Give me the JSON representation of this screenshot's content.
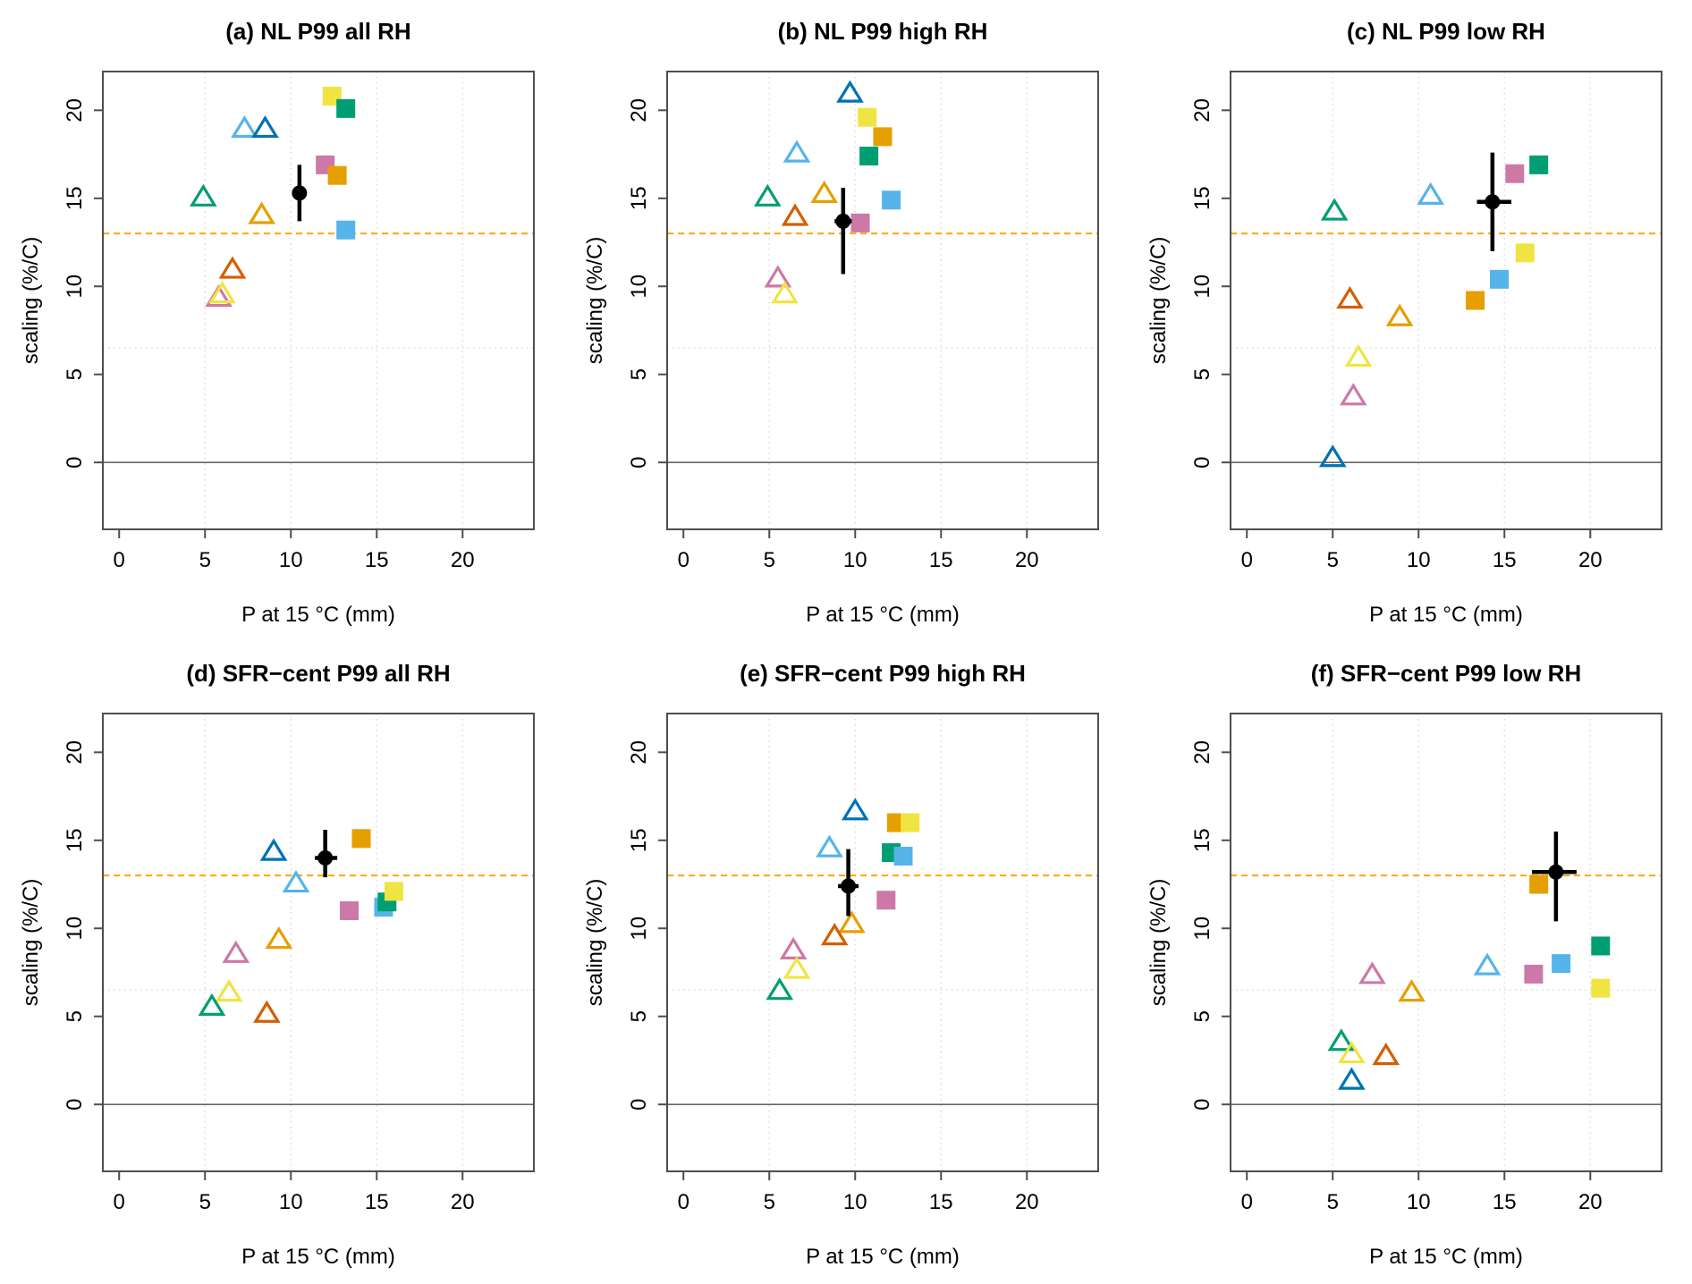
{
  "figure": {
    "xlabel": "P at 15 °C (mm)",
    "ylabel": "scaling (%/C)",
    "x_ticks": [
      0,
      5,
      10,
      15,
      20
    ],
    "y_ticks": [
      0,
      5,
      10,
      15,
      20
    ],
    "xlim": [
      -0.95,
      24.15
    ],
    "ylim": [
      -3.8,
      22.2
    ],
    "grid": "dotted gray vertical at x ticks 5-20, dotted gray horizontal at y 6.5 and 13",
    "grid_x": [
      5,
      10,
      15,
      20
    ],
    "ref_lines": {
      "gray_dotted_y": [
        6.5,
        13
      ],
      "orange_dashed_y": 13,
      "solid_zero_y": 0
    },
    "colors": {
      "orange": "#E69F00",
      "skyblue": "#56B4E9",
      "green": "#009E73",
      "yellow": "#F0E442",
      "darkblue": "#0072B2",
      "vermillion": "#D55E00",
      "pink": "#CC79A7",
      "black": "#000000",
      "orange_line": "#FFA500",
      "gray_grid": "#DCDCDC",
      "axis": "#4d4d4d"
    }
  },
  "chart_data": [
    {
      "panel": "a",
      "title": "(a) NL P99 all RH",
      "type": "scatter",
      "triangles": [
        {
          "color": "green",
          "x": 4.9,
          "y": 15.1
        },
        {
          "color": "skyblue",
          "x": 7.3,
          "y": 19.0
        },
        {
          "color": "darkblue",
          "x": 8.5,
          "y": 19.0
        },
        {
          "color": "orange",
          "x": 8.3,
          "y": 14.1
        },
        {
          "color": "vermillion",
          "x": 6.6,
          "y": 11.0
        },
        {
          "color": "pink",
          "x": 5.8,
          "y": 9.4
        },
        {
          "color": "yellow",
          "x": 6.0,
          "y": 9.6
        }
      ],
      "squares": [
        {
          "color": "skyblue",
          "x": 13.2,
          "y": 13.2
        },
        {
          "color": "pink",
          "x": 12.0,
          "y": 16.9
        },
        {
          "color": "orange",
          "x": 12.7,
          "y": 16.3
        },
        {
          "color": "yellow",
          "x": 12.4,
          "y": 20.8
        },
        {
          "color": "green",
          "x": 13.2,
          "y": 20.1
        }
      ],
      "ensemble_mean": {
        "x": 10.5,
        "y": 15.3,
        "yerr": [
          13.7,
          16.9
        ],
        "xerr": null
      }
    },
    {
      "panel": "b",
      "title": "(b) NL P99 high RH",
      "type": "scatter",
      "triangles": [
        {
          "color": "green",
          "x": 4.9,
          "y": 15.1
        },
        {
          "color": "skyblue",
          "x": 6.6,
          "y": 17.6
        },
        {
          "color": "darkblue",
          "x": 9.7,
          "y": 21.0
        },
        {
          "color": "orange",
          "x": 8.2,
          "y": 15.3
        },
        {
          "color": "vermillion",
          "x": 6.5,
          "y": 14.0
        },
        {
          "color": "pink",
          "x": 5.5,
          "y": 10.5
        },
        {
          "color": "yellow",
          "x": 5.9,
          "y": 9.6
        }
      ],
      "squares": [
        {
          "color": "pink",
          "x": 10.3,
          "y": 13.6
        },
        {
          "color": "skyblue",
          "x": 12.1,
          "y": 14.9
        },
        {
          "color": "green",
          "x": 10.8,
          "y": 17.4
        },
        {
          "color": "orange",
          "x": 11.6,
          "y": 18.5
        },
        {
          "color": "yellow",
          "x": 10.7,
          "y": 19.6
        }
      ],
      "ensemble_mean": {
        "x": 9.3,
        "y": 13.7,
        "yerr": [
          10.7,
          15.6
        ],
        "xerr": [
          8.8,
          9.8
        ]
      }
    },
    {
      "panel": "c",
      "title": "(c) NL P99 low RH",
      "type": "scatter",
      "triangles": [
        {
          "color": "green",
          "x": 5.1,
          "y": 14.3
        },
        {
          "color": "skyblue",
          "x": 10.7,
          "y": 15.2
        },
        {
          "color": "darkblue",
          "x": 5.0,
          "y": 0.3
        },
        {
          "color": "vermillion",
          "x": 6.0,
          "y": 9.3
        },
        {
          "color": "orange",
          "x": 8.9,
          "y": 8.3
        },
        {
          "color": "yellow",
          "x": 6.5,
          "y": 6.0
        },
        {
          "color": "pink",
          "x": 6.2,
          "y": 3.8
        }
      ],
      "squares": [
        {
          "color": "orange",
          "x": 13.3,
          "y": 9.2
        },
        {
          "color": "skyblue",
          "x": 14.7,
          "y": 10.4
        },
        {
          "color": "yellow",
          "x": 16.2,
          "y": 11.9
        },
        {
          "color": "pink",
          "x": 15.6,
          "y": 16.4
        },
        {
          "color": "green",
          "x": 17.0,
          "y": 16.9
        }
      ],
      "ensemble_mean": {
        "x": 14.3,
        "y": 14.8,
        "yerr": [
          12.0,
          17.6
        ],
        "xerr": [
          13.4,
          15.4
        ]
      }
    },
    {
      "panel": "d",
      "title": "(d) SFR−cent P99 all RH",
      "type": "scatter",
      "triangles": [
        {
          "color": "darkblue",
          "x": 9.0,
          "y": 14.4
        },
        {
          "color": "skyblue",
          "x": 10.3,
          "y": 12.6
        },
        {
          "color": "orange",
          "x": 9.3,
          "y": 9.4
        },
        {
          "color": "pink",
          "x": 6.8,
          "y": 8.6
        },
        {
          "color": "yellow",
          "x": 6.4,
          "y": 6.4
        },
        {
          "color": "green",
          "x": 5.4,
          "y": 5.6
        },
        {
          "color": "vermillion",
          "x": 8.6,
          "y": 5.2
        }
      ],
      "squares": [
        {
          "color": "pink",
          "x": 13.4,
          "y": 11.0
        },
        {
          "color": "skyblue",
          "x": 15.4,
          "y": 11.2
        },
        {
          "color": "green",
          "x": 15.6,
          "y": 11.5
        },
        {
          "color": "yellow",
          "x": 16.0,
          "y": 12.1
        },
        {
          "color": "orange",
          "x": 14.1,
          "y": 15.1
        }
      ],
      "ensemble_mean": {
        "x": 12.0,
        "y": 14.0,
        "yerr": [
          12.9,
          15.6
        ],
        "xerr": [
          11.4,
          12.7
        ]
      }
    },
    {
      "panel": "e",
      "title": "(e) SFR−cent P99 high RH",
      "type": "scatter",
      "triangles": [
        {
          "color": "darkblue",
          "x": 10.0,
          "y": 16.7
        },
        {
          "color": "skyblue",
          "x": 8.5,
          "y": 14.6
        },
        {
          "color": "orange",
          "x": 9.8,
          "y": 10.3
        },
        {
          "color": "vermillion",
          "x": 8.8,
          "y": 9.6
        },
        {
          "color": "pink",
          "x": 6.4,
          "y": 8.8
        },
        {
          "color": "yellow",
          "x": 6.6,
          "y": 7.7
        },
        {
          "color": "green",
          "x": 5.6,
          "y": 6.5
        }
      ],
      "squares": [
        {
          "color": "pink",
          "x": 11.8,
          "y": 11.6
        },
        {
          "color": "green",
          "x": 12.1,
          "y": 14.3
        },
        {
          "color": "skyblue",
          "x": 12.8,
          "y": 14.1
        },
        {
          "color": "orange",
          "x": 12.4,
          "y": 16.0
        },
        {
          "color": "yellow",
          "x": 13.2,
          "y": 16.0
        }
      ],
      "ensemble_mean": {
        "x": 9.6,
        "y": 12.4,
        "yerr": [
          10.7,
          14.5
        ],
        "xerr": [
          9.0,
          10.2
        ]
      }
    },
    {
      "panel": "f",
      "title": "(f) SFR−cent P99 low RH",
      "type": "scatter",
      "triangles": [
        {
          "color": "pink",
          "x": 7.3,
          "y": 7.4
        },
        {
          "color": "orange",
          "x": 9.6,
          "y": 6.4
        },
        {
          "color": "skyblue",
          "x": 14.0,
          "y": 7.9
        },
        {
          "color": "green",
          "x": 5.5,
          "y": 3.6
        },
        {
          "color": "yellow",
          "x": 6.1,
          "y": 2.9
        },
        {
          "color": "vermillion",
          "x": 8.1,
          "y": 2.8
        },
        {
          "color": "darkblue",
          "x": 6.1,
          "y": 1.4
        }
      ],
      "squares": [
        {
          "color": "pink",
          "x": 16.7,
          "y": 7.4
        },
        {
          "color": "skyblue",
          "x": 18.3,
          "y": 8.0
        },
        {
          "color": "green",
          "x": 20.6,
          "y": 9.0
        },
        {
          "color": "yellow",
          "x": 20.6,
          "y": 6.6
        },
        {
          "color": "orange",
          "x": 17.0,
          "y": 12.5
        }
      ],
      "ensemble_mean": {
        "x": 18.0,
        "y": 13.2,
        "yerr": [
          10.4,
          15.5
        ],
        "xerr": [
          16.6,
          19.2
        ]
      }
    }
  ]
}
